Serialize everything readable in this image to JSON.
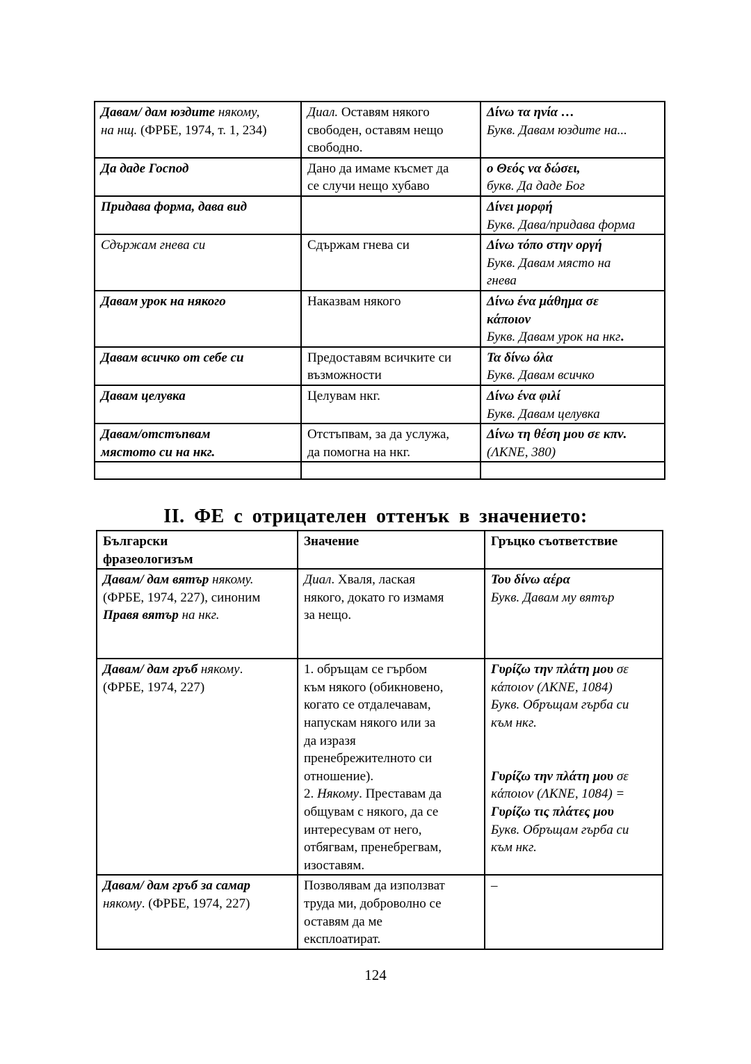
{
  "table1": {
    "rows": [
      [
        [
          {
            "t": "Давам/ дам юздите",
            "s": "bi"
          },
          {
            "t": " някому,\nна нщ.",
            "s": "i"
          },
          {
            "t": " (ФРБЕ, 1974, т. 1, 234)",
            "s": "r"
          }
        ],
        [
          {
            "t": "Диал.",
            "s": "i"
          },
          {
            "t": "   Оставям   някого\nсвободен,  оставям  нещо\nсвободно.",
            "s": "r"
          }
        ],
        [
          {
            "t": "Δίνω τα ηνία …",
            "s": "bi"
          },
          {
            "t": "\nБукв. Давам юздите на...",
            "s": "i"
          }
        ]
      ],
      [
        [
          {
            "t": "Да даде Господ",
            "s": "bi"
          }
        ],
        [
          {
            "t": "Дано да имаме късмет да\nсе случи нещо хубаво",
            "s": "r"
          }
        ],
        [
          {
            "t": "ο Θεός να δώσει,",
            "s": "bi"
          },
          {
            "t": "\nбукв. Да даде Бог",
            "s": "i"
          }
        ]
      ],
      [
        [
          {
            "t": "Придава форма, дава вид",
            "s": "bi"
          }
        ],
        [],
        [
          {
            "t": "Δίνει μορφή",
            "s": "bi"
          },
          {
            "t": "\nБукв. Дава/придава форма",
            "s": "i"
          }
        ]
      ],
      [
        [
          {
            "t": "Сдържам гнева си",
            "s": "i"
          }
        ],
        [
          {
            "t": "Сдържам гнева си",
            "s": "r"
          }
        ],
        [
          {
            "t": "Δίνω τόπο στην οργή",
            "s": "bi"
          },
          {
            "t": "\nБукв. Давам място на\nгнева",
            "s": "i"
          }
        ]
      ],
      [
        [
          {
            "t": "Давам урок на някого",
            "s": "bi"
          }
        ],
        [
          {
            "t": "Наказвам някого",
            "s": "r"
          }
        ],
        [
          {
            "t": "Δίνω ένα μάθημα σε\nκάποιον",
            "s": "bi"
          },
          {
            "t": "\nБукв. Давам урок на нкг",
            "s": "i"
          },
          {
            "t": ".",
            "s": "b"
          }
        ]
      ],
      [
        [
          {
            "t": "Давам всичко от себе си",
            "s": "bi"
          }
        ],
        [
          {
            "t": "Предоставям всичките си\nвъзможности",
            "s": "r"
          }
        ],
        [
          {
            "t": "Τα δίνω όλα",
            "s": "bi"
          },
          {
            "t": "\nБукв. Давам всичко",
            "s": "i"
          }
        ]
      ],
      [
        [
          {
            "t": "Давам целувка",
            "s": "bi"
          }
        ],
        [
          {
            "t": "Целувам нкг.",
            "s": "r"
          }
        ],
        [
          {
            "t": "Δίνω ένα φιλί",
            "s": "bi"
          },
          {
            "t": "\nБукв. Давам целувка",
            "s": "i"
          }
        ]
      ],
      [
        [
          {
            "t": "Давам/отстъпвам\nмястото си на нкг.",
            "s": "bi"
          }
        ],
        [
          {
            "t": "Отстъпвам, за да услужа,\nда помогна на нкг.",
            "s": "r"
          }
        ],
        [
          {
            "t": "Δίνω τη θέση μου σε κπν.",
            "s": "bi"
          },
          {
            "t": "\n(ΛΚΝΕ, 380)",
            "s": "i"
          }
        ]
      ],
      [
        [],
        [],
        []
      ]
    ]
  },
  "heading": "II. ФЕ с отрицателен оттенък в значението:",
  "table2": {
    "rows": [
      [
        [
          {
            "t": "Български\nфразеологизъм",
            "s": "b"
          }
        ],
        [
          {
            "t": "Значение",
            "s": "b"
          }
        ],
        [
          {
            "t": "Гръцко съответствие",
            "s": "b"
          }
        ]
      ],
      [
        [
          {
            "t": "Давам/ дам вятър",
            "s": "bi"
          },
          {
            "t": " някому.",
            "s": "i"
          },
          {
            "t": "\n(ФРБЕ, 1974, 227), синоним\n",
            "s": "r"
          },
          {
            "t": "Правя вятър",
            "s": "bi"
          },
          {
            "t": " на нкг.",
            "s": "i"
          }
        ],
        [
          {
            "t": "Диал",
            "s": "i"
          },
          {
            "t": ". Хваля, лаская\nнякого, докато го измамя\nза нещо.",
            "s": "r"
          }
        ],
        [
          {
            "t": "Του δίνω αέρα",
            "s": "bi"
          },
          {
            "t": "\nБукв. Давам му вятър",
            "s": "i"
          }
        ]
      ],
      [
        [
          {
            "t": "Давам/ дам гръб",
            "s": "bi"
          },
          {
            "t": " някому",
            "s": "i"
          },
          {
            "t": ".\n(ФРБЕ, 1974, 227)",
            "s": "r"
          }
        ],
        [
          {
            "t": "1. обръщам се гърбом\nкъм някого (обикновено,\nкогато се отдалечавам,\nнапускам някого или за\nда изразя\nпренебрежителното си\nотношение).\n2. ",
            "s": "r"
          },
          {
            "t": "Някому",
            "s": "i"
          },
          {
            "t": ". Преставам да\nобщувам с някого, да се\nинтересувам от него,\nотбягвам, пренебрегвам,\nизоставям.",
            "s": "r"
          }
        ],
        [
          {
            "t": "Γυρίζω την πλάτη μου",
            "s": "bi"
          },
          {
            "t": " σε\nκάποιον (ΛΚΝΕ, 1084)\nБукв. Обръщам гърба си\nкъм нкг.\n\n\n",
            "s": "i"
          },
          {
            "t": "Γυρίζω την πλάτη μου",
            "s": "bi"
          },
          {
            "t": " σε\nκάποιον (ΛΚΝΕ, 1084) =\n",
            "s": "i"
          },
          {
            "t": "Γυρίζω τις πλάτες μου",
            "s": "bi"
          },
          {
            "t": "\nБукв. Обръщам гърба си\nкъм нкг.",
            "s": "i"
          }
        ]
      ],
      [
        [
          {
            "t": "Давам/ дам гръб за самар",
            "s": "bi"
          },
          {
            "t": "\nнякому",
            "s": "i"
          },
          {
            "t": ". (ФРБЕ, 1974, 227)",
            "s": "r"
          }
        ],
        [
          {
            "t": "Позволявам да използват\nтруда ми, доброволно се\nоставям да ме\nексплоатират.",
            "s": "r"
          }
        ],
        [
          {
            "t": "–",
            "s": "r"
          }
        ]
      ]
    ]
  },
  "page_number": "124"
}
